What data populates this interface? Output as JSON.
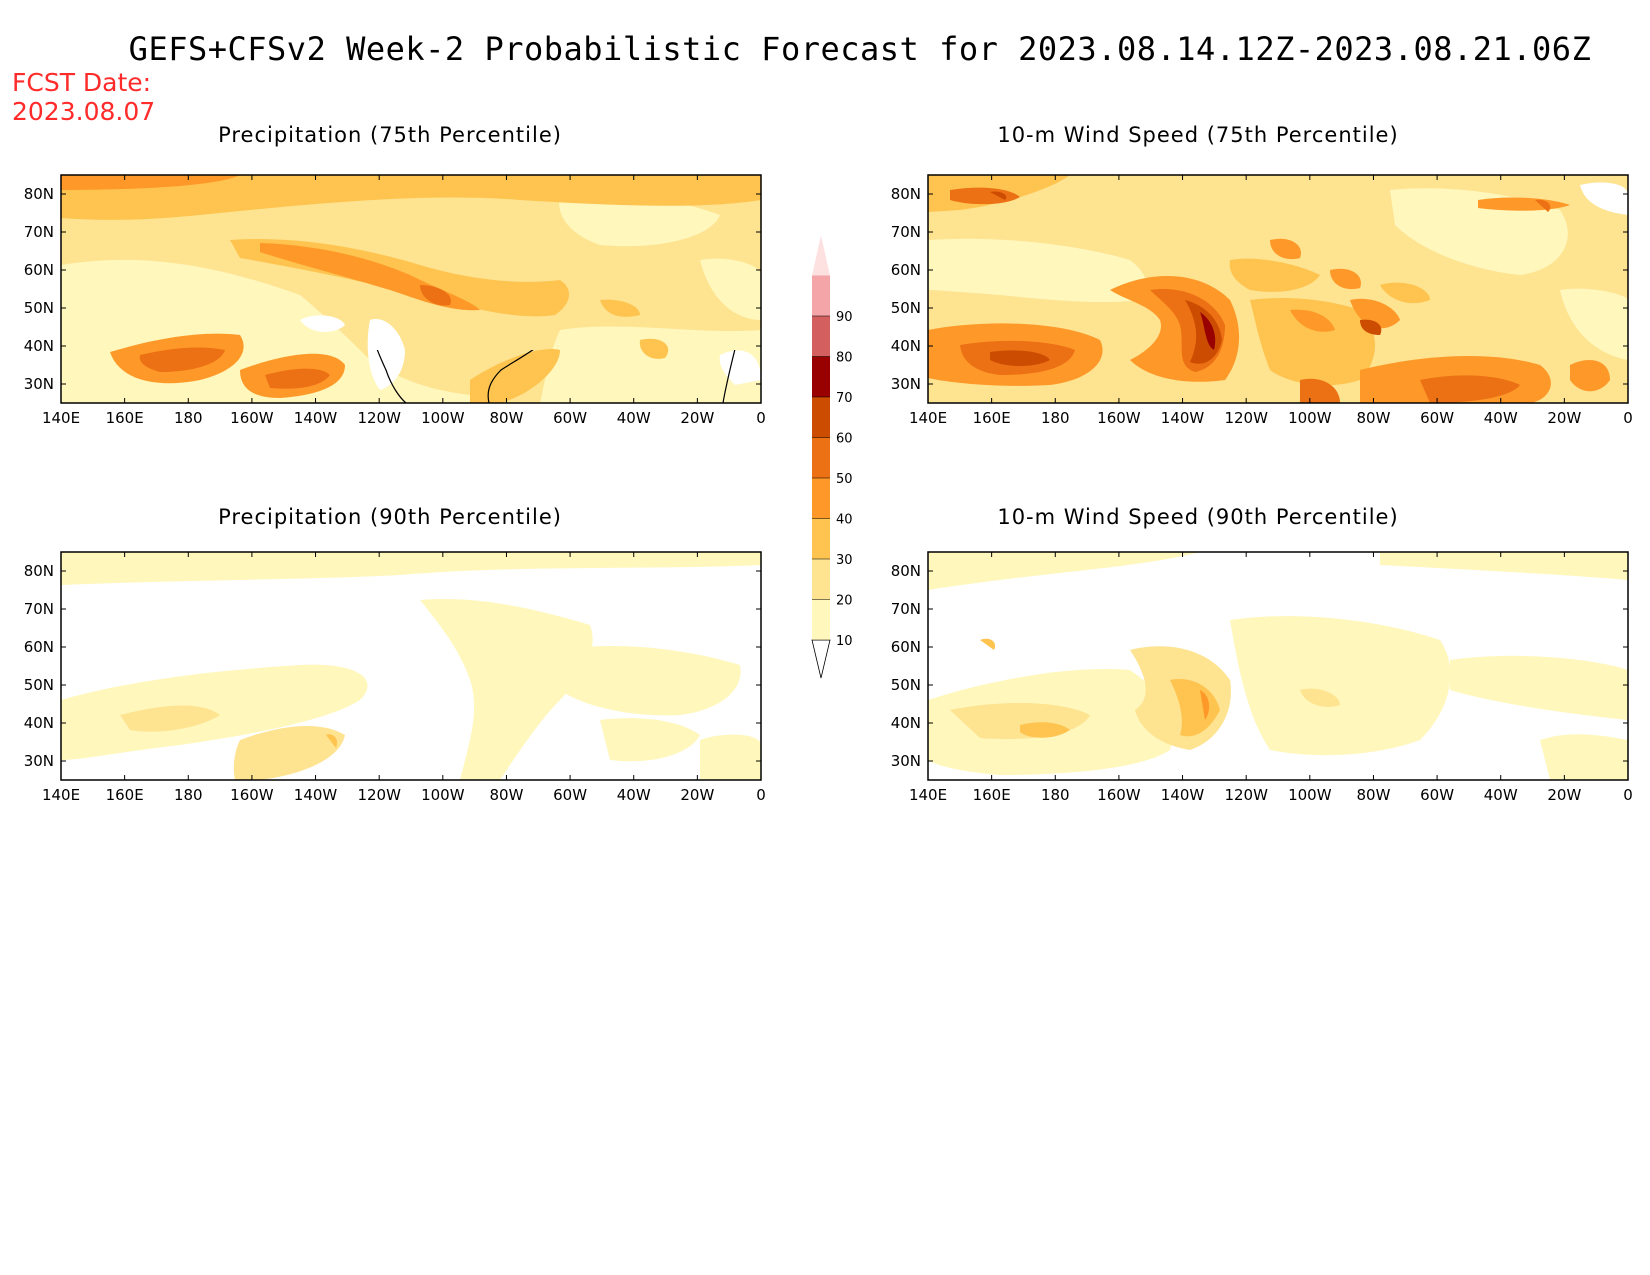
{
  "header": {
    "title": "GEFS+CFSv2 Week-2 Probabilistic Forecast for 2023.08.14.12Z-2023.08.21.06Z",
    "fcst_label": "FCST Date:",
    "fcst_date": "2023.08.07"
  },
  "colors": {
    "10": "#fff7bc",
    "20": "#fee391",
    "30": "#fec44f",
    "40": "#fe9929",
    "50": "#ec7014",
    "60": "#cc4c02",
    "70": "#990000",
    "80": "#d45f5f",
    "90": "#f4a5a8",
    "100": "#fde0e0"
  },
  "colorbar": {
    "levels": [
      "10",
      "20",
      "30",
      "40",
      "50",
      "60",
      "70",
      "80",
      "90"
    ]
  },
  "axes": {
    "lon_labels": [
      "140E",
      "160E",
      "180",
      "160W",
      "140W",
      "120W",
      "100W",
      "80W",
      "60W",
      "40W",
      "20W",
      "0"
    ],
    "lat_labels": [
      "80N",
      "70N",
      "60N",
      "50N",
      "40N",
      "30N"
    ]
  },
  "panels": [
    {
      "id": "precip75",
      "title": "Precipitation (75th Percentile)"
    },
    {
      "id": "wind75",
      "title": "10-m Wind Speed (75th Percentile)"
    },
    {
      "id": "precip90",
      "title": "Precipitation (90th Percentile)"
    },
    {
      "id": "wind90",
      "title": "10-m Wind Speed (90th Percentile)"
    }
  ]
}
